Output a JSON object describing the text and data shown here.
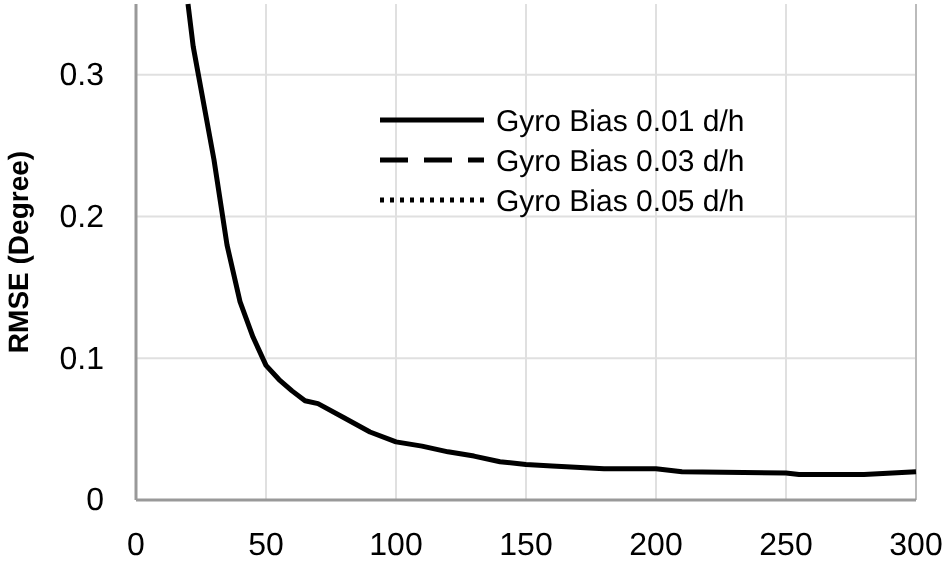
{
  "chart_data": {
    "type": "line",
    "ylabel": "RMSE (Degree)",
    "x": [
      20,
      22,
      25,
      30,
      35,
      40,
      45,
      50,
      55,
      60,
      65,
      70,
      80,
      90,
      100,
      110,
      120,
      130,
      140,
      150,
      160,
      180,
      200,
      210,
      250,
      255,
      280,
      300
    ],
    "series": [
      {
        "name": "Gyro Bias 0.01 d/h",
        "color": "#000000",
        "line_style": "solid",
        "values": [
          0.35,
          0.32,
          0.29,
          0.24,
          0.18,
          0.14,
          0.115,
          0.095,
          0.085,
          0.077,
          0.07,
          0.068,
          0.058,
          0.048,
          0.041,
          0.038,
          0.034,
          0.031,
          0.027,
          0.025,
          0.024,
          0.022,
          0.022,
          0.02,
          0.019,
          0.018,
          0.018,
          0.02
        ]
      },
      {
        "name": "Gyro Bias 0.03 d/h",
        "color": "#000000",
        "line_style": "dashed",
        "values": [
          null,
          null,
          null,
          null,
          null,
          null,
          null,
          null,
          null,
          null,
          null,
          null,
          null,
          null,
          null,
          null,
          null,
          null,
          null,
          null,
          null,
          null,
          null,
          null,
          null,
          null,
          null,
          null
        ]
      },
      {
        "name": "Gyro Bias 0.05 d/h",
        "color": "#000000",
        "line_style": "dotted",
        "values": [
          null,
          null,
          null,
          null,
          null,
          null,
          null,
          null,
          null,
          null,
          null,
          null,
          null,
          null,
          null,
          null,
          null,
          null,
          null,
          null,
          null,
          null,
          null,
          null,
          null,
          null,
          null,
          null
        ]
      }
    ],
    "xlim": [
      0,
      300
    ],
    "xticks": [
      0,
      50,
      100,
      150,
      200,
      250,
      300
    ],
    "ylim": [
      0,
      0.35
    ],
    "yticks": [
      0,
      0.1,
      0.2,
      0.3
    ],
    "grid": true,
    "legend": "top right",
    "marker": "none"
  }
}
